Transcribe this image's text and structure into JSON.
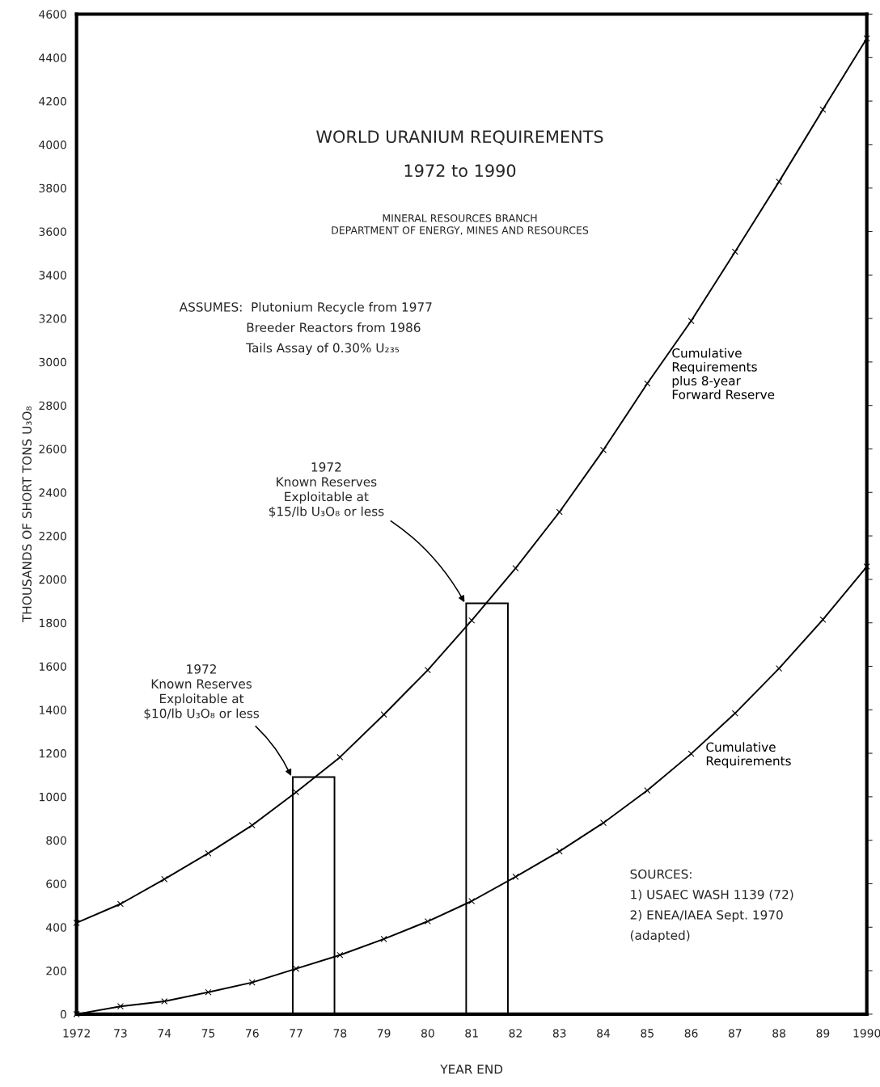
{
  "chart_data": {
    "type": "line",
    "title": "WORLD URANIUM REQUIREMENTS",
    "subtitle": "1972 to 1990",
    "xlabel": "YEAR END",
    "ylabel": "THOUSANDS OF SHORT TONS U₃O₈",
    "x": [
      1972,
      1973,
      1974,
      1975,
      1976,
      1977,
      1978,
      1979,
      1980,
      1981,
      1982,
      1983,
      1984,
      1985,
      1986,
      1987,
      1988,
      1989,
      1990
    ],
    "series": [
      {
        "name": "Cumulative\nRequirements\nplus 8-year\nForward Reserve",
        "color": "#000000",
        "values": [
          420,
          507,
          621,
          740,
          869,
          1021,
          1182,
          1378,
          1583,
          1811,
          2051,
          2310,
          2595,
          2901,
          3189,
          3507,
          3829,
          4161,
          4488
        ]
      },
      {
        "name": "Cumulative\nRequirements",
        "color": "#000000",
        "values": [
          0,
          36,
          59,
          101,
          146,
          209,
          272,
          346,
          427,
          520,
          632,
          749,
          880,
          1029,
          1198,
          1384,
          1590,
          1815,
          2059
        ]
      },
      {
        "type": "bar",
        "color": "#ffffff",
        "x": [
          1977.4,
          1981.35
        ],
        "values": [
          1091,
          1890
        ]
      }
    ],
    "marker": "cross",
    "line_style": "solid",
    "grid": false,
    "legend": false,
    "xlim": [
      1972,
      1990
    ],
    "ylim": [
      0,
      4600
    ],
    "xticks": [
      1972,
      {
        "value": 1973,
        "label": "73"
      },
      {
        "value": 1974,
        "label": "74"
      },
      {
        "value": 1975,
        "label": "75"
      },
      {
        "value": 1976,
        "label": "76"
      },
      {
        "value": 1977,
        "label": "77"
      },
      {
        "value": 1978,
        "label": "78"
      },
      {
        "value": 1979,
        "label": "79"
      },
      {
        "value": 1980,
        "label": "80"
      },
      {
        "value": 1981,
        "label": "81"
      },
      {
        "value": 1982,
        "label": "82"
      },
      {
        "value": 1983,
        "label": "83"
      },
      {
        "value": 1984,
        "label": "84"
      },
      {
        "value": 1985,
        "label": "85"
      },
      {
        "value": 1986,
        "label": "86"
      },
      {
        "value": 1987,
        "label": "87"
      },
      {
        "value": 1988,
        "label": "88"
      },
      {
        "value": 1989,
        "label": "89"
      },
      1990
    ],
    "yticks": [
      0,
      200,
      400,
      600,
      800,
      1000,
      1200,
      1400,
      1600,
      1800,
      2000,
      2200,
      2400,
      2600,
      2800,
      3000,
      3200,
      3400,
      3600,
      3800,
      4000,
      4200,
      4400,
      4600
    ],
    "annotations": [
      "MINERAL RESOURCES BRANCH\nDEPARTMENT OF ENERGY, MINES AND RESOURCES",
      "ASSUMES:  Plutonium Recycle from 1977\n                 Breeder Reactors from 1986\n                 Tails Assay of 0.30% U₂₃₅",
      {
        "text": "1972\nKnown Reserves\nExploitable at\n$10/lb U₃O₈ or less",
        "x": 1976.9,
        "y": 1091
      },
      {
        "text": "1972\nKnown Reserves\nExploitable at\n$15/lb U₃O₈ or less",
        "x": 1980.85,
        "y": 1890
      },
      "SOURCES:\n1) USAEC WASH 1139 (72)\n2) ENEA/IAEA Sept. 1970\n(adapted)"
    ]
  }
}
